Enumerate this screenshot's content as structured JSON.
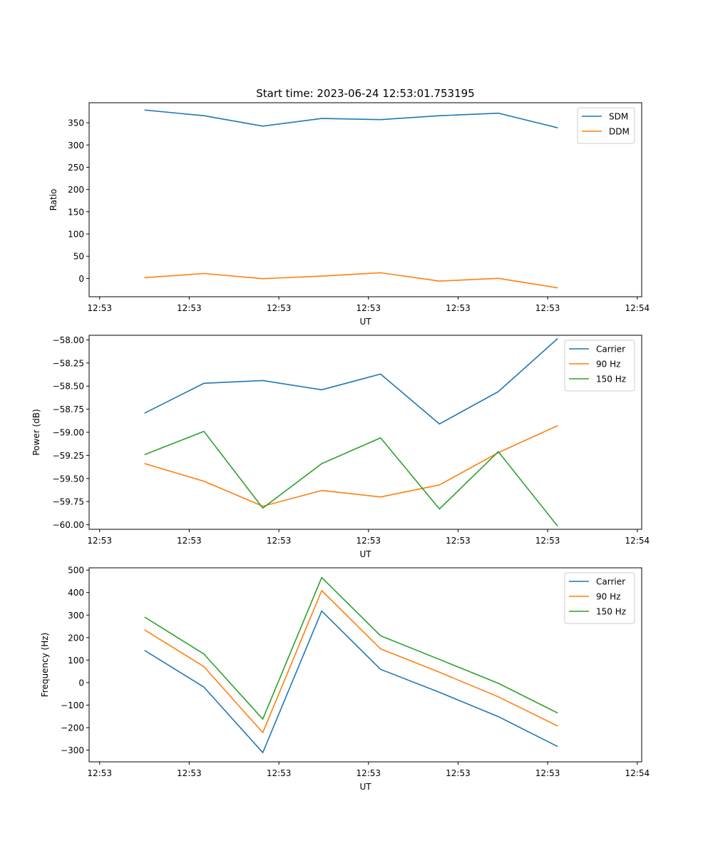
{
  "title": "Start time: 2023-06-24 12:53:01.753195",
  "colors": {
    "blue": "#1f77b4",
    "orange": "#ff7f0e",
    "green": "#2ca02c"
  },
  "chart_data": [
    {
      "type": "line",
      "title": "Start time: 2023-06-24 12:53:01.753195",
      "xlabel": "UT",
      "ylabel": "Ratio",
      "x_tick_labels": [
        "12:53",
        "12:53",
        "12:53",
        "12:53",
        "12:53",
        "12:53",
        "12:54"
      ],
      "ylim": [
        -41,
        395
      ],
      "y_ticks": [
        0,
        50,
        100,
        150,
        200,
        250,
        300,
        350
      ],
      "grid": false,
      "legend": "top-right",
      "series": [
        {
          "name": "SDM",
          "color": "#1f77b4",
          "values": [
            378.5,
            365.8,
            342.4,
            359.6,
            357.0,
            365.8,
            371.5,
            338.9
          ]
        },
        {
          "name": "DDM",
          "color": "#ff7f0e",
          "values": [
            1.9,
            11.3,
            -0.4,
            5.4,
            12.9,
            -5.8,
            0.4,
            -20.9
          ]
        }
      ]
    },
    {
      "type": "line",
      "xlabel": "UT",
      "ylabel": "Power (dB)",
      "x_tick_labels": [
        "12:53",
        "12:53",
        "12:53",
        "12:53",
        "12:53",
        "12:53",
        "12:54"
      ],
      "ylim": [
        -60.05,
        -57.95
      ],
      "y_ticks": [
        -60.0,
        -59.75,
        -59.5,
        -59.25,
        -59.0,
        -58.75,
        -58.5,
        -58.25,
        -58.0
      ],
      "y_tick_labels": [
        "−60.00",
        "−59.75",
        "−59.50",
        "−59.25",
        "−59.00",
        "−58.75",
        "−58.50",
        "−58.25",
        "−58.00"
      ],
      "grid": false,
      "legend": "top-right",
      "series": [
        {
          "name": "Carrier",
          "color": "#1f77b4",
          "values": [
            -58.79,
            -58.47,
            -58.44,
            -58.54,
            -58.37,
            -58.91,
            -58.56,
            -57.99
          ]
        },
        {
          "name": "90 Hz",
          "color": "#ff7f0e",
          "values": [
            -59.34,
            -59.53,
            -59.8,
            -59.63,
            -59.7,
            -59.57,
            -59.22,
            -58.93
          ]
        },
        {
          "name": "150 Hz",
          "color": "#2ca02c",
          "values": [
            -59.24,
            -58.99,
            -59.82,
            -59.34,
            -59.06,
            -59.83,
            -59.21,
            -60.01
          ]
        }
      ]
    },
    {
      "type": "line",
      "xlabel": "UT",
      "ylabel": "Frequency (Hz)",
      "x_tick_labels": [
        "12:53",
        "12:53",
        "12:53",
        "12:53",
        "12:53",
        "12:53",
        "12:54"
      ],
      "ylim": [
        -352,
        510
      ],
      "y_ticks": [
        -300,
        -200,
        -100,
        0,
        100,
        200,
        300,
        400,
        500
      ],
      "y_tick_labels": [
        "−300",
        "−200",
        "−100",
        "0",
        "100",
        "200",
        "300",
        "400",
        "500"
      ],
      "grid": false,
      "legend": "top-right",
      "series": [
        {
          "name": "Carrier",
          "color": "#1f77b4",
          "values": [
            142,
            -20,
            -311,
            318,
            59,
            -43,
            -151,
            -283
          ]
        },
        {
          "name": "90 Hz",
          "color": "#ff7f0e",
          "values": [
            233,
            71,
            -222,
            409,
            150,
            46,
            -63,
            -192
          ]
        },
        {
          "name": "150 Hz",
          "color": "#2ca02c",
          "values": [
            290,
            127,
            -162,
            467,
            208,
            103,
            -3,
            -134
          ]
        }
      ]
    }
  ]
}
